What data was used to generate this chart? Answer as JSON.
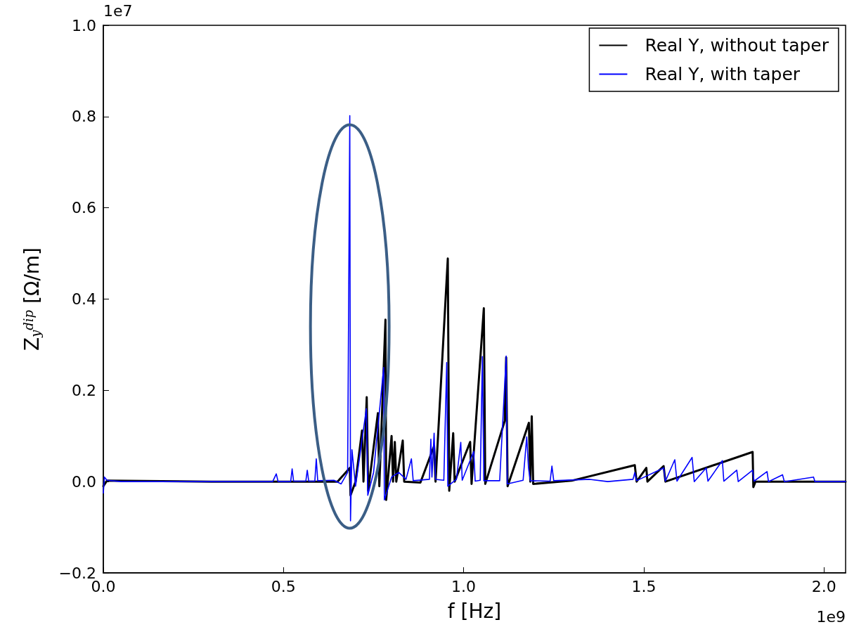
{
  "chart_data": {
    "type": "line",
    "xlabel": "f [Hz]",
    "ylabel": "Z$_{y}$$^{dip}$ [Ω/m]",
    "annotations": [
      "1e7",
      "1e9"
    ],
    "xlim": [
      0,
      2.06
    ],
    "xticks": [
      {
        "value": 0,
        "label": "0.0"
      },
      0.5,
      {
        "value": 1,
        "label": "1.0"
      },
      1.5,
      {
        "value": 2,
        "label": "2.0"
      }
    ],
    "ylim": [
      -0.2,
      1
    ],
    "yticks": [
      {
        "value": -0.2,
        "label": "−0.2"
      },
      {
        "value": 0,
        "label": "0.0"
      },
      0.2,
      0.4,
      0.6,
      0.8,
      {
        "value": 1,
        "label": "1.0"
      }
    ],
    "grid": false,
    "legend": "top right",
    "marker": "none",
    "line_style": "solid",
    "series": [
      {
        "name": "Real Y, without taper",
        "color": "#000000",
        "x": [
          0,
          0.01,
          0.3,
          0.65,
          0.684,
          0.686,
          0.7,
          0.718,
          0.722,
          0.731,
          0.735,
          0.762,
          0.766,
          0.783,
          0.785,
          0.8,
          0.804,
          0.809,
          0.813,
          0.831,
          0.835,
          0.88,
          0.918,
          0.922,
          0.956,
          0.96,
          0.971,
          0.975,
          1.018,
          1.022,
          1.056,
          1.06,
          1.114,
          1.118,
          1.122,
          1.181,
          1.185,
          1.189,
          1.193,
          1.3,
          1.475,
          1.48,
          1.507,
          1.51,
          1.555,
          1.56,
          1.802,
          1.804,
          1.81,
          2.06
        ],
        "values": [
          -0.01,
          0.002,
          0,
          0,
          0.03,
          -0.03,
          0,
          0.112,
          0,
          0.185,
          -0.02,
          0.15,
          -0.01,
          0.355,
          -0.04,
          0.1,
          0,
          0.087,
          0,
          0.09,
          0,
          -0.002,
          0.078,
          0,
          0.489,
          -0.02,
          0.106,
          0,
          0.087,
          -0.005,
          0.38,
          -0.005,
          0.133,
          0.272,
          -0.01,
          0.129,
          0,
          0.143,
          -0.005,
          0.002,
          0.036,
          0,
          0.03,
          0,
          0.034,
          0,
          0.065,
          -0.012,
          0,
          0
        ]
      },
      {
        "name": "Real Y, with taper",
        "color": "#0000ff",
        "x": [
          0,
          0.003,
          0.01,
          0.05,
          0.3,
          0.47,
          0.48,
          0.485,
          0.52,
          0.524,
          0.528,
          0.562,
          0.566,
          0.57,
          0.587,
          0.591,
          0.595,
          0.64,
          0.66,
          0.678,
          0.684,
          0.686,
          0.69,
          0.7,
          0.73,
          0.734,
          0.75,
          0.778,
          0.78,
          0.8,
          0.82,
          0.84,
          0.855,
          0.86,
          0.905,
          0.909,
          0.912,
          0.918,
          0.922,
          0.945,
          0.953,
          0.956,
          0.98,
          0.992,
          0.996,
          1.028,
          1.032,
          1.046,
          1.052,
          1.056,
          1.1,
          1.118,
          1.121,
          1.165,
          1.175,
          1.18,
          1.185,
          1.24,
          1.245,
          1.25,
          1.35,
          1.4,
          1.47,
          1.475,
          1.48,
          1.555,
          1.56,
          1.586,
          1.592,
          1.634,
          1.64,
          1.673,
          1.678,
          1.718,
          1.722,
          1.758,
          1.762,
          1.802,
          1.806,
          1.842,
          1.846,
          1.885,
          1.89,
          1.971,
          1.975,
          2.06
        ],
        "values": [
          -0.025,
          0.01,
          0.003,
          0,
          0,
          0,
          0.017,
          0,
          0,
          0.028,
          0.001,
          0.001,
          0.025,
          0.001,
          0.001,
          0.05,
          0.002,
          0.003,
          -0.005,
          0.02,
          0.802,
          -0.086,
          0.07,
          -0.01,
          0.16,
          -0.03,
          0.02,
          0.25,
          -0.04,
          0.01,
          0.02,
          0.005,
          0.05,
          0.002,
          0.005,
          0.093,
          0.01,
          0.106,
          0.005,
          0.003,
          0.261,
          -0.01,
          0.005,
          0.086,
          0.003,
          0.066,
          0.001,
          0.003,
          0.274,
          0.002,
          0.002,
          0.275,
          -0.005,
          0.003,
          0.098,
          0.03,
          0.002,
          0.001,
          0.034,
          0.002,
          0.005,
          0,
          0.005,
          0.02,
          0.002,
          0.03,
          0.001,
          0.048,
          0.001,
          0.053,
          0,
          0.03,
          0.001,
          0.046,
          0.001,
          0.025,
          0,
          0.025,
          0.001,
          0.022,
          0,
          0.015,
          0,
          0.01,
          0,
          0
        ]
      }
    ]
  }
}
